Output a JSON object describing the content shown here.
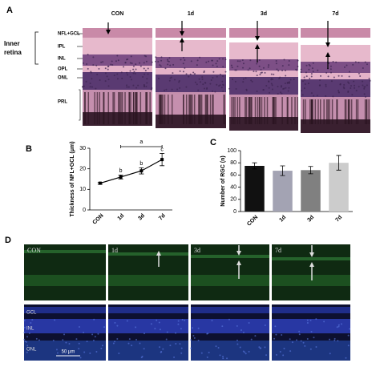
{
  "panel_labels": [
    "A",
    "B",
    "C",
    "D"
  ],
  "panel_a": {
    "columns": [
      "CON",
      "1d",
      "3d",
      "7d"
    ],
    "region": "Inner\nretina",
    "layers": [
      "NFL+GCL",
      "IPL",
      "INL",
      "OPL",
      "ONL",
      "PRL"
    ]
  },
  "chart_data": [
    {
      "type": "line",
      "y_label": "Thickness of NFL+GCL (μm)",
      "categories": [
        "CON",
        "1d",
        "3d",
        "7d"
      ],
      "values": [
        13,
        16,
        19,
        24.5
      ],
      "errors": [
        0.5,
        1,
        1.5,
        3
      ],
      "value_letters": [
        null,
        "b",
        "b",
        "c"
      ],
      "bracket_label": "a",
      "color": "#000000",
      "ylim": [
        0,
        30
      ],
      "yticks": [
        0,
        10,
        20,
        30
      ]
    },
    {
      "type": "bar",
      "y_label": "Number of RGC (n)",
      "categories": [
        "CON",
        "1d",
        "3d",
        "7d"
      ],
      "values": [
        75,
        67,
        68,
        80
      ],
      "errors": [
        5,
        8,
        6,
        12
      ],
      "colors": [
        "#111111",
        "#a3a3b3",
        "#808080",
        "#cccccc"
      ],
      "ylim": [
        0,
        100
      ],
      "yticks": [
        0,
        20,
        40,
        60,
        80,
        100
      ]
    }
  ],
  "panel_d": {
    "columns": [
      "CON",
      "1d",
      "3d",
      "7d"
    ],
    "layers": [
      "GCL",
      "INL",
      "ONL"
    ],
    "scale_bar": "50 μm"
  }
}
